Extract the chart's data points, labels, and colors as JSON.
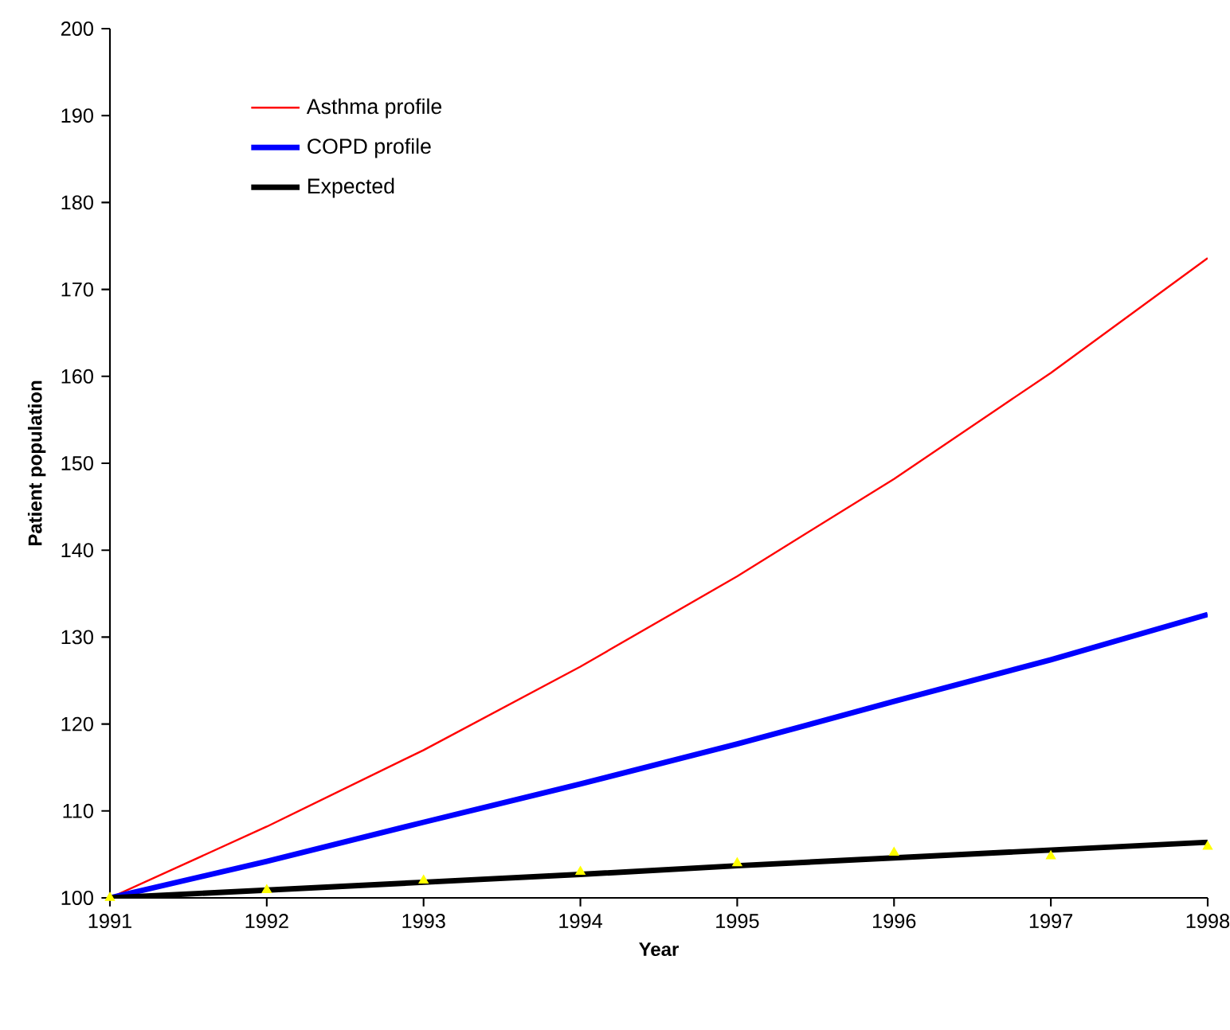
{
  "chart_data": {
    "type": "line",
    "xlabel": "Year",
    "ylabel": "Patient population",
    "x": [
      1991,
      1992,
      1993,
      1994,
      1995,
      1996,
      1997,
      1998
    ],
    "series": [
      {
        "name": "Asthma profile",
        "color": "#ff0000",
        "values": [
          100,
          108.2,
          117,
          126.6,
          137,
          148.2,
          160.4,
          173.6
        ]
      },
      {
        "name": "COPD profile",
        "color": "#0000ff",
        "values": [
          100,
          104.2,
          108.7,
          113.1,
          117.7,
          122.6,
          127.4,
          132.6
        ]
      },
      {
        "name": "Expected",
        "color": "#000000",
        "values": [
          100,
          100.9,
          101.8,
          102.7,
          103.7,
          104.6,
          105.5,
          106.4
        ]
      },
      {
        "type": "scatter",
        "marker": "triangle",
        "color": "#ffff00",
        "values": [
          100,
          100.9,
          102,
          103,
          104,
          105.2,
          104.8,
          105.9
        ]
      }
    ],
    "xlim": [
      1991,
      1998
    ],
    "xticks": [
      1991,
      1992,
      1993,
      1994,
      1995,
      1996,
      1997,
      1998
    ],
    "ylim": [
      100,
      200
    ],
    "yticks": [
      100,
      110,
      120,
      130,
      140,
      150,
      160,
      170,
      180,
      190,
      200
    ],
    "grid": false,
    "legend": "top left"
  }
}
